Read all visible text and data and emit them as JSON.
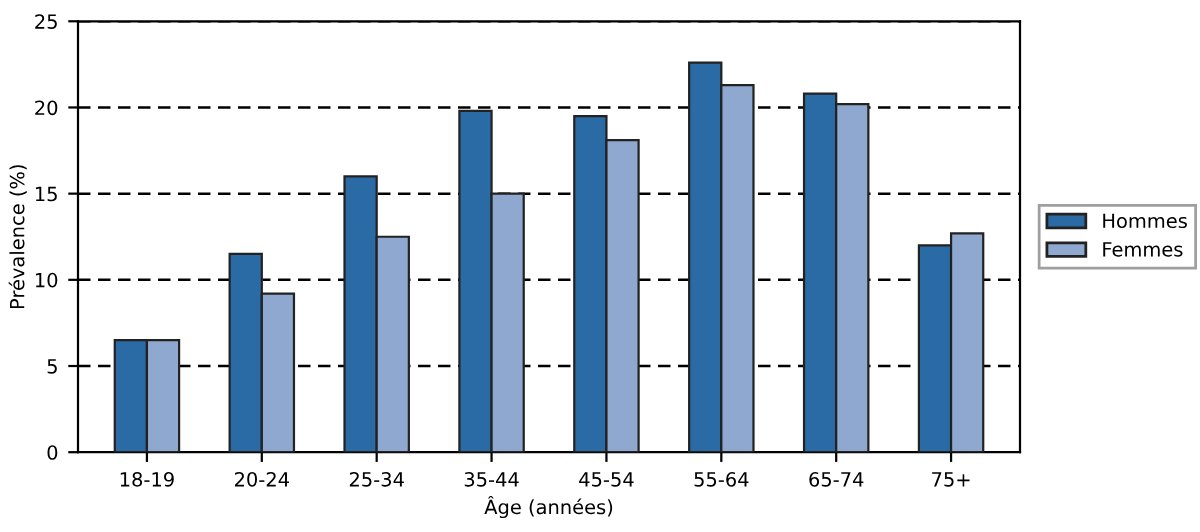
{
  "chart_data": {
    "type": "bar",
    "xlabel": "Âge (années)",
    "ylabel": "Prévalence (%)",
    "categories": [
      "18-19",
      "20-24",
      "25-34",
      "35-44",
      "45-54",
      "55-64",
      "65-74",
      "75+"
    ],
    "series": [
      {
        "name": "Hommes",
        "color": "#2a6aa5",
        "values": [
          6.5,
          11.5,
          16,
          19.8,
          19.5,
          22.6,
          20.8,
          12
        ]
      },
      {
        "name": "Femmes",
        "color": "#8fa8d0",
        "values": [
          6.5,
          9.2,
          12.5,
          15,
          18.1,
          21.3,
          20.2,
          12.7
        ]
      }
    ],
    "ylim": [
      0,
      25
    ],
    "yticks": [
      0,
      5,
      10,
      15,
      20,
      25
    ],
    "grid": "y",
    "legend": "right"
  }
}
